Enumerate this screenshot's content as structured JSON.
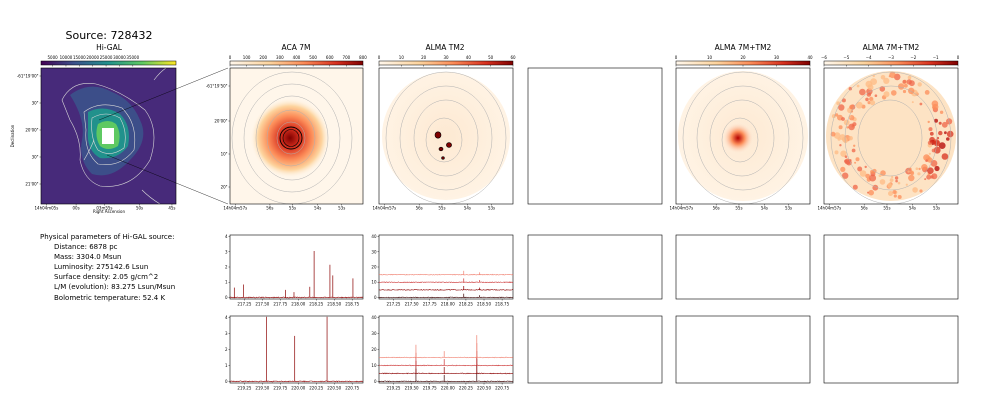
{
  "figure": {
    "suptitle": "Source: 728432",
    "colors": {
      "spectrum": "#8b0000",
      "frame": "#000000",
      "contour": "#b0b0b0"
    }
  },
  "params": {
    "heading": "Physical parameters of Hi-GAL source:",
    "rows": [
      "Distance: 6878 pc",
      "Mass: 3304.0 Msun",
      "Luminosity: 275142.6 Lsun",
      "Surface density: 2.05 g/cm^2",
      "L/M (evolution): 83.275 Lsun/Msun",
      "Bolometric temperature: 52.4 K"
    ]
  },
  "chart_data": [
    {
      "type": "heatmap",
      "title": "Hi-GAL",
      "colormap": "viridis",
      "colorbar_ticks": [
        "5000",
        "10000",
        "15000",
        "20000",
        "25000",
        "30000",
        "35000"
      ],
      "ylabel": "Declination",
      "xlabel": "Right Ascension",
      "yticks": [
        "-61°19'00\"",
        "30\"",
        "20'00\"",
        "30\"",
        "21'00\""
      ],
      "xticks": [
        "14h04m05s",
        "00s",
        "03m55s",
        "50s",
        "45s"
      ]
    },
    {
      "type": "heatmap",
      "title": "ACA 7M",
      "colormap": "OrRd",
      "colorbar_ticks": [
        "0",
        "100",
        "200",
        "300",
        "400",
        "500",
        "600",
        "700",
        "800"
      ],
      "yticks": [
        "-61°19'50\"",
        "20'00\"",
        "10\"",
        "20\""
      ],
      "xticks": [
        "14h04m57s",
        "56s",
        "55s",
        "54s",
        "53s"
      ]
    },
    {
      "type": "heatmap",
      "title": "ALMA TM2",
      "colormap": "OrRd",
      "colorbar_ticks": [
        "0",
        "10",
        "20",
        "30",
        "40",
        "50",
        "60"
      ],
      "xticks": [
        "14h04m57s",
        "56s",
        "55s",
        "54s",
        "53s"
      ]
    },
    {
      "type": "heatmap",
      "title": "ALMA 7M+TM2",
      "colormap": "OrRd",
      "colorbar_ticks": [
        "0",
        "10",
        "20",
        "30",
        "40"
      ],
      "xticks": [
        "14h04m57s",
        "56s",
        "55s",
        "54s",
        "53s"
      ]
    },
    {
      "type": "heatmap",
      "title": "ALMA 7M+TM2",
      "colormap": "OrRd",
      "colorbar_ticks": [
        "−6",
        "−5",
        "−4",
        "−3",
        "−2",
        "−1",
        "0"
      ],
      "xticks": [
        "14h04m57s",
        "56s",
        "55s",
        "54s",
        "53s"
      ]
    },
    {
      "type": "line",
      "panel": "ACA 7M spectrum, upper band",
      "xticks": [
        "217.25",
        "217.50",
        "217.75",
        "218.00",
        "218.25",
        "218.50",
        "218.75"
      ],
      "xlim": [
        217.05,
        218.9
      ],
      "yticks": [
        "0",
        "1",
        "2",
        "3",
        "4"
      ],
      "ylim": [
        -0.1,
        4.1
      ],
      "peaks": [
        [
          217.11,
          0.65
        ],
        [
          217.24,
          0.85
        ],
        [
          217.82,
          0.5
        ],
        [
          217.94,
          0.35
        ],
        [
          218.16,
          0.7
        ],
        [
          218.22,
          3.05
        ],
        [
          218.44,
          2.15
        ],
        [
          218.48,
          1.45
        ],
        [
          218.76,
          1.25
        ]
      ]
    },
    {
      "type": "line",
      "panel": "ALMA TM2 spectra, upper band",
      "xticks": [
        "217.25",
        "217.50",
        "217.75",
        "218.00",
        "218.25",
        "218.50",
        "218.75"
      ],
      "xlim": [
        217.05,
        218.9
      ],
      "yticks": [
        "0",
        "10",
        "20",
        "30",
        "40"
      ],
      "ylim": [
        -1,
        41
      ],
      "offsets": [
        0,
        5,
        10,
        15
      ],
      "series_colors": [
        "#3a0000",
        "#8b0000",
        "#cc3333",
        "#f08070"
      ],
      "peaks": [
        [
          218.22,
          2.5
        ],
        [
          218.44,
          1.5
        ]
      ]
    },
    {
      "type": "line",
      "panel": "ACA 7M spectrum, lower band",
      "xticks": [
        "219.25",
        "219.50",
        "219.75",
        "220.00",
        "220.25",
        "220.50",
        "220.75"
      ],
      "xlim": [
        219.05,
        220.9
      ],
      "yticks": [
        "0",
        "1",
        "2",
        "3",
        "4"
      ],
      "ylim": [
        -0.1,
        4.1
      ],
      "peaks": [
        [
          219.56,
          4.05
        ],
        [
          219.95,
          2.85
        ],
        [
          220.4,
          4.05
        ]
      ]
    },
    {
      "type": "line",
      "panel": "ALMA TM2 spectra, lower band",
      "xticks": [
        "219.25",
        "219.50",
        "219.75",
        "220.00",
        "220.25",
        "220.50",
        "220.75"
      ],
      "xlim": [
        219.05,
        220.9
      ],
      "yticks": [
        "0",
        "10",
        "20",
        "30",
        "40"
      ],
      "ylim": [
        -1,
        41
      ],
      "offsets": [
        0,
        5,
        10,
        15
      ],
      "series_colors": [
        "#3a0000",
        "#8b0000",
        "#cc3333",
        "#f08070"
      ],
      "peaks": [
        [
          219.56,
          8
        ],
        [
          219.95,
          4
        ],
        [
          220.4,
          14
        ]
      ]
    }
  ]
}
